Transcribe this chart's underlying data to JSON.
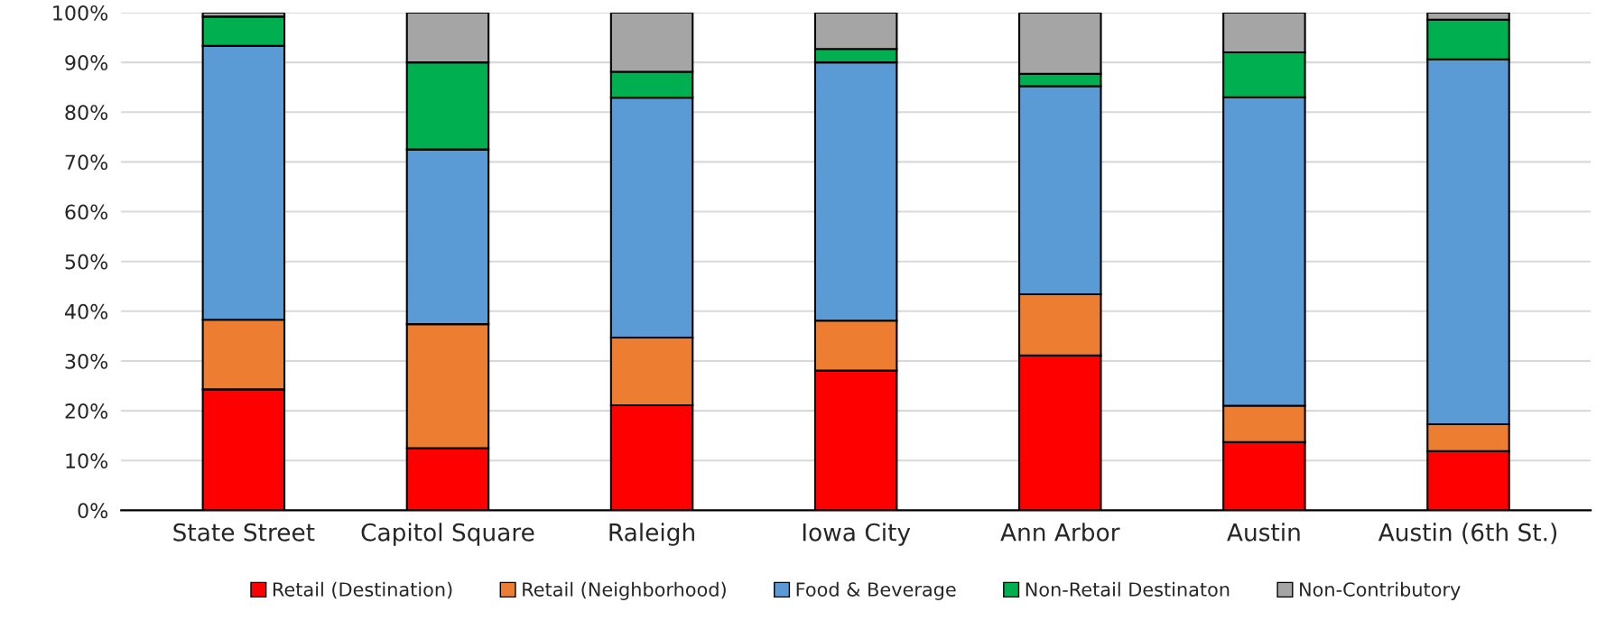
{
  "chart_data": {
    "type": "bar",
    "stacked": true,
    "categories": [
      "State Street",
      "Capitol Square",
      "Raleigh",
      "Iowa City",
      "Ann Arbor",
      "Austin",
      "Austin (6th St.)"
    ],
    "series": [
      {
        "name": "Retail (Destination)",
        "color": "#ff0000",
        "values": [
          24.3,
          12.5,
          21.1,
          28.1,
          31.1,
          13.7,
          11.9
        ]
      },
      {
        "name": "Retail (Neighborhood)",
        "color": "#ed7d31",
        "values": [
          14.0,
          24.9,
          13.6,
          10.0,
          12.3,
          7.3,
          5.4
        ]
      },
      {
        "name": "Food & Beverage",
        "color": "#5b9bd5",
        "values": [
          55.0,
          35.1,
          48.2,
          51.9,
          41.8,
          62.0,
          73.3
        ]
      },
      {
        "name": "Non-Retail Destinaton",
        "color": "#00b050",
        "values": [
          5.9,
          17.5,
          5.2,
          2.7,
          2.5,
          9.0,
          8.0
        ]
      },
      {
        "name": "Non-Contributory",
        "color": "#a5a5a5",
        "values": [
          0.8,
          10.0,
          11.9,
          7.3,
          12.3,
          8.0,
          1.4
        ]
      }
    ],
    "ylim": [
      0,
      100
    ],
    "yticks": [
      {
        "value": 0,
        "label": "0%"
      },
      {
        "value": 10,
        "label": "10%"
      },
      {
        "value": 20,
        "label": "20%"
      },
      {
        "value": 30,
        "label": "30%"
      },
      {
        "value": 40,
        "label": "40%"
      },
      {
        "value": 50,
        "label": "50%"
      },
      {
        "value": 60,
        "label": "60%"
      },
      {
        "value": 70,
        "label": "70%"
      },
      {
        "value": 80,
        "label": "80%"
      },
      {
        "value": 90,
        "label": "90%"
      },
      {
        "value": 100,
        "label": "100%"
      }
    ],
    "grid": "y",
    "legend": "bottom"
  }
}
